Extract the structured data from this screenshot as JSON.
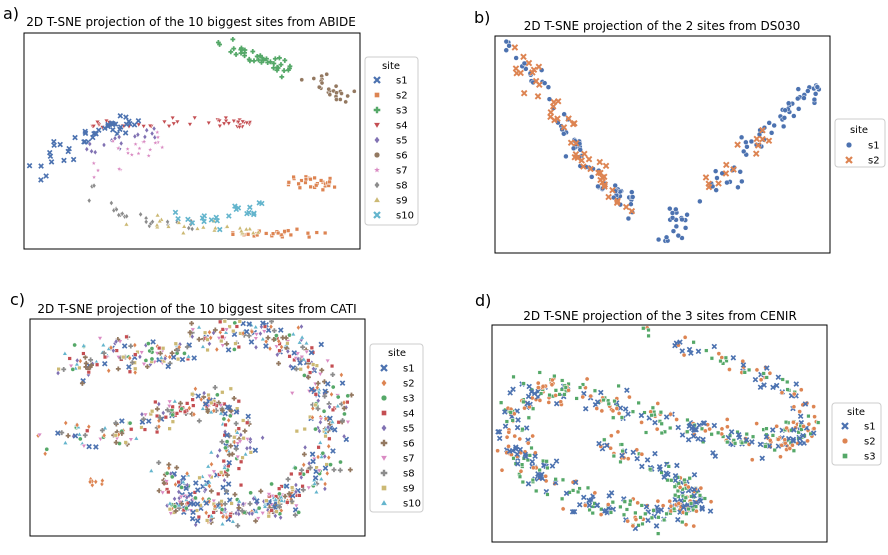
{
  "figure": {
    "type": "multi-panel scatter (t-SNE)"
  },
  "colors": {
    "s1": "#4c72b0",
    "s2": "#dd8452",
    "s3": "#55a868",
    "s4": "#c44e52",
    "s5": "#8172b3",
    "s6": "#937860",
    "s7": "#da8bc3",
    "s8": "#8c8c8c",
    "s9": "#ccb974",
    "s10": "#64b5cd"
  },
  "chart_data": [
    {
      "panel": "a)",
      "type": "scatter",
      "title": "2D T-SNE projection of the 10 biggest sites from ABIDE",
      "xlabel": "",
      "ylabel": "",
      "xlim": [
        0,
        100
      ],
      "ylim": [
        0,
        100
      ],
      "legend": {
        "title": "site",
        "placement": "right",
        "entries": [
          "s1",
          "s2",
          "s3",
          "s4",
          "s5",
          "s6",
          "s7",
          "s8",
          "s9",
          "s10"
        ],
        "markers": [
          "x",
          "square",
          "plus",
          "triangle-down",
          "diamond",
          "circle",
          "star",
          "diamond",
          "triangle-up",
          "x"
        ]
      },
      "clusters": [
        {
          "site": "s3",
          "n": 40,
          "path": [
            [
              58,
              96
            ],
            [
              70,
              88
            ],
            [
              80,
              82
            ]
          ],
          "spread": 1.5
        },
        {
          "site": "s6",
          "n": 25,
          "path": [
            [
              87,
              78
            ],
            [
              95,
              70
            ]
          ],
          "spread": 1.6
        },
        {
          "site": "s4",
          "n": 45,
          "path": [
            [
              20,
              58
            ],
            [
              40,
              58
            ],
            [
              60,
              58
            ],
            [
              68,
              58
            ]
          ],
          "spread": 1.2
        },
        {
          "site": "s1",
          "n": 45,
          "path": [
            [
              5,
              35
            ],
            [
              12,
              45
            ],
            [
              25,
              57
            ],
            [
              35,
              58
            ]
          ],
          "spread": 2.2
        },
        {
          "site": "s5",
          "n": 18,
          "path": [
            [
              18,
              45
            ],
            [
              30,
              52
            ],
            [
              40,
              54
            ]
          ],
          "spread": 1.5
        },
        {
          "site": "s7",
          "n": 22,
          "path": [
            [
              28,
              48
            ],
            [
              42,
              52
            ],
            [
              19,
              32
            ]
          ],
          "spread": 1.8
        },
        {
          "site": "s2",
          "n": 30,
          "path": [
            [
              81,
              30
            ],
            [
              91,
              31
            ]
          ],
          "spread": 1.5
        },
        {
          "site": "s2",
          "n": 25,
          "path": [
            [
              62,
              7
            ],
            [
              90,
              7
            ]
          ],
          "spread": 1.0
        },
        {
          "site": "s8",
          "n": 25,
          "path": [
            [
              20,
              28
            ],
            [
              28,
              17
            ],
            [
              38,
              12
            ],
            [
              50,
              11
            ]
          ],
          "spread": 1.4
        },
        {
          "site": "s9",
          "n": 25,
          "path": [
            [
              32,
              12
            ],
            [
              50,
              10
            ],
            [
              58,
              10
            ],
            [
              70,
              8
            ]
          ],
          "spread": 1.3
        },
        {
          "site": "s10",
          "n": 22,
          "path": [
            [
              38,
              15
            ],
            [
              50,
              14
            ],
            [
              58,
              12
            ],
            [
              65,
              17
            ],
            [
              70,
              20
            ]
          ],
          "spread": 1.5
        }
      ]
    },
    {
      "panel": "b)",
      "type": "scatter",
      "title": "2D T-SNE projection of the 2 sites from DS030",
      "xlabel": "",
      "ylabel": "",
      "xlim": [
        0,
        100
      ],
      "ylim": [
        0,
        100
      ],
      "legend": {
        "title": "site",
        "placement": "right",
        "entries": [
          "s1",
          "s2"
        ],
        "markers": [
          "circle",
          "x"
        ]
      },
      "clusters": [
        {
          "site": "s1",
          "n": 70,
          "path": [
            [
              5,
              97
            ],
            [
              12,
              80
            ],
            [
              20,
              60
            ],
            [
              25,
              45
            ],
            [
              33,
              30
            ],
            [
              40,
              25
            ],
            [
              39,
              12
            ]
          ],
          "spread": 1.6
        },
        {
          "site": "s2",
          "n": 50,
          "path": [
            [
              6,
              95
            ],
            [
              14,
              75
            ],
            [
              22,
              57
            ],
            [
              29,
              38
            ],
            [
              38,
              18
            ]
          ],
          "spread": 1.8
        },
        {
          "site": "s1",
          "n": 20,
          "path": [
            [
              52,
              20
            ],
            [
              56,
              14
            ],
            [
              51,
              6
            ]
          ],
          "spread": 1.5
        },
        {
          "site": "s1",
          "n": 60,
          "path": [
            [
              64,
              28
            ],
            [
              74,
              45
            ],
            [
              84,
              62
            ],
            [
              92,
              73
            ],
            [
              97,
              75
            ]
          ],
          "spread": 2.0
        },
        {
          "site": "s2",
          "n": 14,
          "path": [
            [
              63,
              30
            ],
            [
              72,
              42
            ],
            [
              82,
              58
            ]
          ],
          "spread": 1.6
        }
      ]
    },
    {
      "panel": "c)",
      "type": "scatter",
      "title": "2D T-SNE projection of the 10 biggest sites from CATI",
      "xlabel": "",
      "ylabel": "",
      "xlim": [
        0,
        100
      ],
      "ylim": [
        0,
        100
      ],
      "legend": {
        "title": "site",
        "placement": "right",
        "entries": [
          "s1",
          "s2",
          "s3",
          "s4",
          "s5",
          "s6",
          "s7",
          "s8",
          "s9",
          "s10"
        ],
        "markers": [
          "x",
          "diamond",
          "circle",
          "square",
          "diamond",
          "plus",
          "triangle-down",
          "plus",
          "square",
          "triangle-up"
        ]
      },
      "clusters": [
        {
          "site": "mixed",
          "n": 420,
          "path": [
            [
              13,
              75
            ],
            [
              25,
              86
            ],
            [
              38,
              82
            ],
            [
              50,
              90
            ],
            [
              62,
              95
            ],
            [
              78,
              90
            ],
            [
              86,
              72
            ],
            [
              90,
              50
            ],
            [
              86,
              30
            ],
            [
              78,
              20
            ]
          ],
          "spread": 3.5
        },
        {
          "site": "mixed",
          "n": 260,
          "path": [
            [
              5,
              45
            ],
            [
              25,
              46
            ],
            [
              40,
              56
            ],
            [
              52,
              62
            ],
            [
              60,
              58
            ],
            [
              62,
              42
            ],
            [
              55,
              28
            ],
            [
              50,
              14
            ]
          ],
          "spread": 3.2
        },
        {
          "site": "mixed",
          "n": 220,
          "path": [
            [
              42,
              30
            ],
            [
              45,
              16
            ],
            [
              55,
              10
            ],
            [
              70,
              14
            ],
            [
              78,
              18
            ]
          ],
          "spread": 3.0
        },
        {
          "site": "s2",
          "n": 8,
          "path": [
            [
              18,
              27
            ],
            [
              20,
              22
            ]
          ],
          "spread": 1.0
        }
      ]
    },
    {
      "panel": "d)",
      "type": "scatter",
      "title": "2D T-SNE projection of the 3 sites from CENIR",
      "xlabel": "",
      "ylabel": "",
      "xlim": [
        0,
        100
      ],
      "ylim": [
        0,
        100
      ],
      "legend": {
        "title": "site",
        "placement": "right",
        "entries": [
          "s1",
          "s2",
          "s3"
        ],
        "markers": [
          "x",
          "circle",
          "square"
        ]
      },
      "clusters": [
        {
          "site": "mixed",
          "n": 70,
          "path": [
            [
              45,
              96
            ],
            [
              60,
              90
            ],
            [
              75,
              80
            ],
            [
              88,
              70
            ],
            [
              94,
              58
            ]
          ],
          "spread": 2.0
        },
        {
          "site": "mixed",
          "n": 300,
          "path": [
            [
              5,
              60
            ],
            [
              12,
              70
            ],
            [
              25,
              70
            ],
            [
              40,
              62
            ],
            [
              55,
              54
            ],
            [
              68,
              48
            ],
            [
              80,
              45
            ],
            [
              90,
              48
            ],
            [
              93,
              55
            ]
          ],
          "spread": 3.0
        },
        {
          "site": "mixed",
          "n": 100,
          "path": [
            [
              33,
              46
            ],
            [
              45,
              38
            ],
            [
              55,
              30
            ],
            [
              62,
              24
            ],
            [
              58,
              17
            ]
          ],
          "spread": 2.5
        },
        {
          "site": "mixed",
          "n": 220,
          "path": [
            [
              6,
              55
            ],
            [
              8,
              40
            ],
            [
              15,
              30
            ],
            [
              28,
              20
            ],
            [
              40,
              14
            ],
            [
              55,
              12
            ],
            [
              60,
              18
            ]
          ],
          "spread": 3.0
        }
      ]
    }
  ],
  "panels": [
    {
      "label": "a)",
      "title": "2D T-SNE projection of the 10 biggest sites from ABIDE",
      "legend_title": "site",
      "legend": [
        {
          "label": "s1",
          "color": "#4c72b0",
          "marker": "x"
        },
        {
          "label": "s2",
          "color": "#dd8452",
          "marker": "square"
        },
        {
          "label": "s3",
          "color": "#55a868",
          "marker": "plus"
        },
        {
          "label": "s4",
          "color": "#c44e52",
          "marker": "tri-down"
        },
        {
          "label": "s5",
          "color": "#8172b3",
          "marker": "diamond"
        },
        {
          "label": "s6",
          "color": "#937860",
          "marker": "circle"
        },
        {
          "label": "s7",
          "color": "#da8bc3",
          "marker": "star"
        },
        {
          "label": "s8",
          "color": "#8c8c8c",
          "marker": "diamond"
        },
        {
          "label": "s9",
          "color": "#ccb974",
          "marker": "tri-up"
        },
        {
          "label": "s10",
          "color": "#64b5cd",
          "marker": "x"
        }
      ]
    },
    {
      "label": "b)",
      "title": "2D T-SNE projection of the 2 sites from DS030",
      "legend_title": "site",
      "legend": [
        {
          "label": "s1",
          "color": "#4c72b0",
          "marker": "circle"
        },
        {
          "label": "s2",
          "color": "#dd8452",
          "marker": "x"
        }
      ]
    },
    {
      "label": "c)",
      "title": "2D T-SNE projection of the 10 biggest sites from CATI",
      "legend_title": "site",
      "legend": [
        {
          "label": "s1",
          "color": "#4c72b0",
          "marker": "x"
        },
        {
          "label": "s2",
          "color": "#dd8452",
          "marker": "diamond"
        },
        {
          "label": "s3",
          "color": "#55a868",
          "marker": "circle"
        },
        {
          "label": "s4",
          "color": "#c44e52",
          "marker": "square"
        },
        {
          "label": "s5",
          "color": "#8172b3",
          "marker": "diamond"
        },
        {
          "label": "s6",
          "color": "#937860",
          "marker": "plus"
        },
        {
          "label": "s7",
          "color": "#da8bc3",
          "marker": "tri-down"
        },
        {
          "label": "s8",
          "color": "#8c8c8c",
          "marker": "plus"
        },
        {
          "label": "s9",
          "color": "#ccb974",
          "marker": "square"
        },
        {
          "label": "s10",
          "color": "#64b5cd",
          "marker": "tri-up"
        }
      ]
    },
    {
      "label": "d)",
      "title": "2D T-SNE projection of the 3 sites from CENIR",
      "legend_title": "site",
      "legend": [
        {
          "label": "s1",
          "color": "#4c72b0",
          "marker": "x"
        },
        {
          "label": "s2",
          "color": "#dd8452",
          "marker": "circle"
        },
        {
          "label": "s3",
          "color": "#55a868",
          "marker": "square"
        }
      ]
    }
  ]
}
